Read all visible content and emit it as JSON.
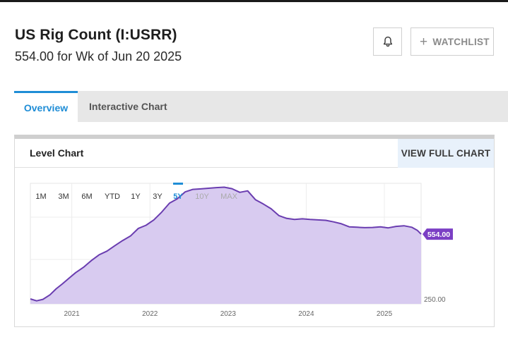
{
  "header": {
    "title": "US Rig Count (I:USRR)",
    "subtitle": "554.00 for Wk of Jun 20 2025",
    "watchlist_label": "WATCHLIST",
    "watchlist_plus": "+"
  },
  "tabs": [
    {
      "label": "Overview",
      "active": true
    },
    {
      "label": "Interactive Chart",
      "active": false
    }
  ],
  "card": {
    "title": "Level Chart",
    "full_chart_label": "VIEW FULL CHART"
  },
  "ranges": [
    {
      "label": "1M",
      "state": "enabled"
    },
    {
      "label": "3M",
      "state": "enabled"
    },
    {
      "label": "6M",
      "state": "enabled"
    },
    {
      "label": "YTD",
      "state": "enabled"
    },
    {
      "label": "1Y",
      "state": "enabled"
    },
    {
      "label": "3Y",
      "state": "enabled"
    },
    {
      "label": "5Y",
      "state": "active"
    },
    {
      "label": "10Y",
      "state": "disabled"
    },
    {
      "label": "MAX",
      "state": "disabled"
    }
  ],
  "colors": {
    "accent": "#1f8dd6",
    "line": "#6a3db0",
    "fill": "#d8cbf0",
    "badge": "#7b3fc4",
    "disabled": "#aaaaaa"
  },
  "chart_data": {
    "type": "area",
    "current_label": "554.00",
    "y_axis_labels": [
      "250.00"
    ],
    "x_tick_labels": [
      "2021",
      "2022",
      "2023",
      "2024",
      "2025"
    ],
    "x_tick_years": [
      2021,
      2022,
      2023,
      2024,
      2025
    ],
    "grid": true,
    "series": [
      {
        "values": [
          [
            2020.47,
            253
          ],
          [
            2020.55,
            244
          ],
          [
            2020.63,
            251
          ],
          [
            2020.72,
            272
          ],
          [
            2020.8,
            300
          ],
          [
            2020.88,
            323
          ],
          [
            2020.96,
            348
          ],
          [
            2021.05,
            375
          ],
          [
            2021.15,
            400
          ],
          [
            2021.25,
            431
          ],
          [
            2021.35,
            458
          ],
          [
            2021.45,
            475
          ],
          [
            2021.55,
            500
          ],
          [
            2021.65,
            524
          ],
          [
            2021.75,
            545
          ],
          [
            2021.85,
            580
          ],
          [
            2021.95,
            595
          ],
          [
            2022.05,
            620
          ],
          [
            2022.15,
            656
          ],
          [
            2022.25,
            698
          ],
          [
            2022.35,
            718
          ],
          [
            2022.45,
            750
          ],
          [
            2022.55,
            762
          ],
          [
            2022.65,
            764
          ],
          [
            2022.75,
            767
          ],
          [
            2022.85,
            770
          ],
          [
            2022.95,
            772
          ],
          [
            2023.05,
            765
          ],
          [
            2023.15,
            748
          ],
          [
            2023.25,
            755
          ],
          [
            2023.35,
            714
          ],
          [
            2023.45,
            694
          ],
          [
            2023.55,
            672
          ],
          [
            2023.65,
            640
          ],
          [
            2023.75,
            627
          ],
          [
            2023.85,
            622
          ],
          [
            2023.95,
            625
          ],
          [
            2024.05,
            622
          ],
          [
            2024.15,
            620
          ],
          [
            2024.25,
            618
          ],
          [
            2024.35,
            611
          ],
          [
            2024.45,
            602
          ],
          [
            2024.55,
            588
          ],
          [
            2024.65,
            586
          ],
          [
            2024.75,
            584
          ],
          [
            2024.85,
            585
          ],
          [
            2024.95,
            588
          ],
          [
            2025.05,
            583
          ],
          [
            2025.15,
            590
          ],
          [
            2025.25,
            593
          ],
          [
            2025.35,
            586
          ],
          [
            2025.42,
            572
          ],
          [
            2025.47,
            554
          ]
        ]
      }
    ]
  }
}
